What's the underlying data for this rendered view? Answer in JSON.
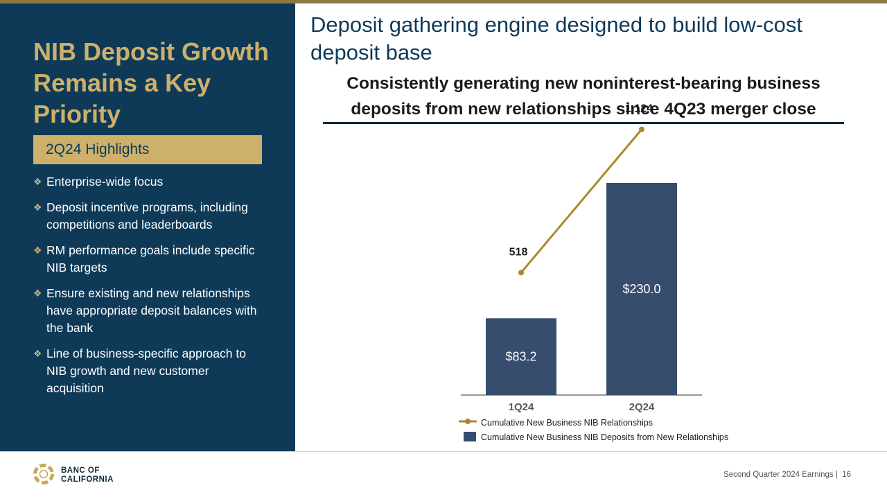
{
  "left_panel": {
    "title": "NIB Deposit Growth Remains a Key Priority",
    "highlights_label": "2Q24 Highlights",
    "bullets": [
      "Enterprise-wide focus",
      "Deposit incentive programs, including competitions and leaderboards",
      "RM performance goals include specific NIB targets",
      "Ensure existing and new relationships have appropriate deposit balances with the bank",
      "Line of business-specific approach to NIB growth and new customer acquisition"
    ]
  },
  "main": {
    "title": "Deposit gathering engine designed to build low-cost deposit base",
    "subtitle": "Consistently generating new noninterest-bearing business deposits from new relationships since 4Q23 merger close"
  },
  "chart_data": {
    "type": "bar",
    "categories": [
      "1Q24",
      "2Q24"
    ],
    "series": [
      {
        "name": "Cumulative New Business NIB Deposits from New Relationships",
        "kind": "bar",
        "values": [
          83.2,
          230.0
        ],
        "labels": [
          "$83.2",
          "$230.0"
        ],
        "color": "#374d6e"
      },
      {
        "name": "Cumulative New Business NIB Relationships",
        "kind": "line",
        "values": [
          518,
          1124
        ],
        "labels": [
          "518",
          "1,124"
        ],
        "color": "#a88a2a"
      }
    ],
    "bar_axis_range": [
      0,
      260
    ],
    "line_axis_range": [
      0,
      1290
    ],
    "legend_position": "bottom"
  },
  "footer": {
    "logo_line1": "BANC OF",
    "logo_line2": "CALIFORNIA",
    "text": "Second Quarter 2024 Earnings |",
    "page_number": "16"
  },
  "colors": {
    "navy": "#0e3a58",
    "gold": "#cdb06a",
    "bar": "#374d6e",
    "line": "#a88a2a"
  }
}
